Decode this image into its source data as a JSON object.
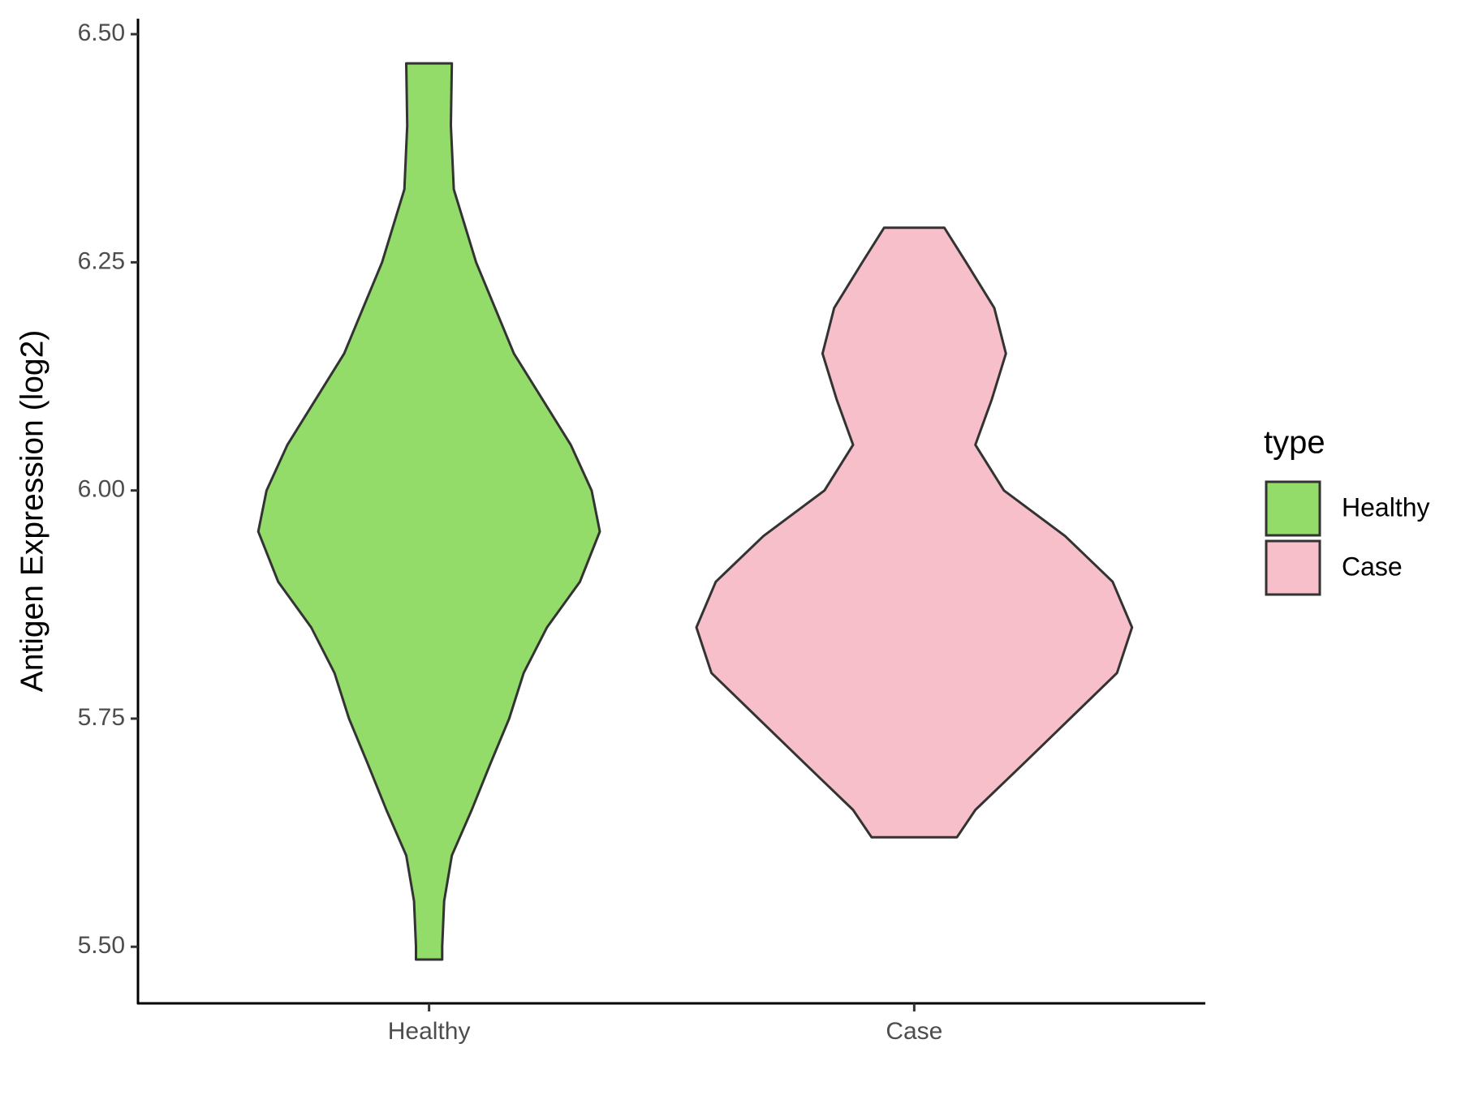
{
  "chart_data": {
    "type": "violin",
    "y_label": "Antigen Expression (log2)",
    "categories": [
      "Healthy",
      "Case"
    ],
    "ylim": [
      5.438,
      6.517
    ],
    "yticks": [
      {
        "value": 5.5,
        "label": "5.50"
      },
      {
        "value": 5.75,
        "label": "5.75"
      },
      {
        "value": 6.0,
        "label": "6.00"
      },
      {
        "value": 6.25,
        "label": "6.25"
      },
      {
        "value": 6.5,
        "label": "6.50"
      }
    ],
    "legend_title": "type",
    "series": [
      {
        "name": "Healthy",
        "color": "#93dc6a",
        "y": [
          6.468,
          6.4,
          6.33,
          6.25,
          6.15,
          6.05,
          6.0,
          5.955,
          5.9,
          5.85,
          5.8,
          5.75,
          5.7,
          5.65,
          5.6,
          5.55,
          5.5,
          5.486
        ],
        "half_width": [
          0.047,
          0.045,
          0.051,
          0.097,
          0.175,
          0.292,
          0.335,
          0.352,
          0.311,
          0.243,
          0.195,
          0.165,
          0.126,
          0.088,
          0.047,
          0.031,
          0.027,
          0.027
        ]
      },
      {
        "name": "Case",
        "color": "#f7bfca",
        "y": [
          6.288,
          6.25,
          6.2,
          6.15,
          6.1,
          6.05,
          6.0,
          5.95,
          5.9,
          5.85,
          5.8,
          5.75,
          5.7,
          5.65,
          5.62
        ],
        "half_width": [
          0.062,
          0.107,
          0.165,
          0.189,
          0.16,
          0.126,
          0.185,
          0.311,
          0.409,
          0.449,
          0.418,
          0.321,
          0.224,
          0.126,
          0.088
        ]
      }
    ]
  }
}
